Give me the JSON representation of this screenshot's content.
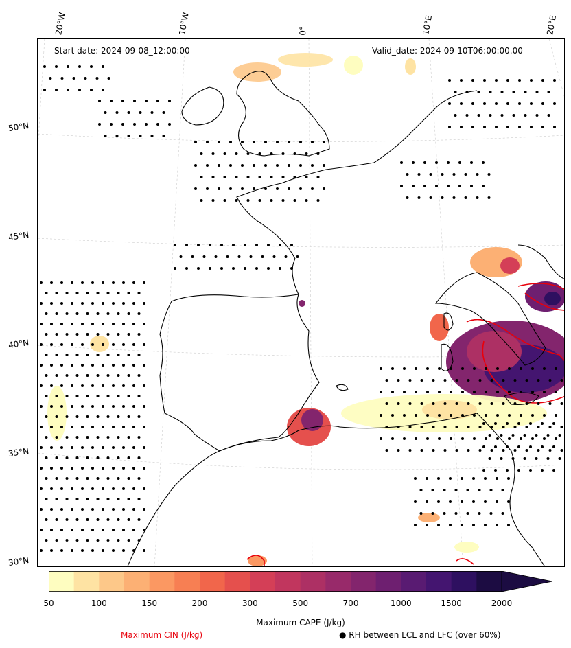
{
  "map": {
    "start_date": "Start date: 2024-09-08_12:00:00",
    "valid_date": "Valid_date: 2024-09-10T06:00:00.00",
    "lon_labels": [
      "20°W",
      "10°W",
      "0°",
      "10°E",
      "20°E"
    ],
    "lat_labels": [
      "50°N",
      "45°N",
      "40°N",
      "35°N",
      "30°N"
    ],
    "coastline_color": "#000000",
    "cin_contour_color": "#e8000b",
    "rh_marker": "dot-marker"
  },
  "colorbar": {
    "title": "Maximum CAPE (J/kg)",
    "ticks": [
      "50",
      "100",
      "150",
      "200",
      "300",
      "500",
      "700",
      "1000",
      "1500",
      "2000"
    ],
    "colors": [
      "#fefdc0",
      "#fee3a3",
      "#fdc889",
      "#fcb074",
      "#fb9862",
      "#f77f53",
      "#f1664b",
      "#e5504d",
      "#d43f57",
      "#c1365e",
      "#ad3064",
      "#982a6a",
      "#83256d",
      "#6e1f70",
      "#591b72",
      "#441570",
      "#2e1060",
      "#1c0c42"
    ],
    "extend": "max"
  },
  "legend": {
    "cin_label": "Maximum CIN (J/kg)",
    "rh_label": "● RH between LCL and LFC (over 60%)"
  }
}
